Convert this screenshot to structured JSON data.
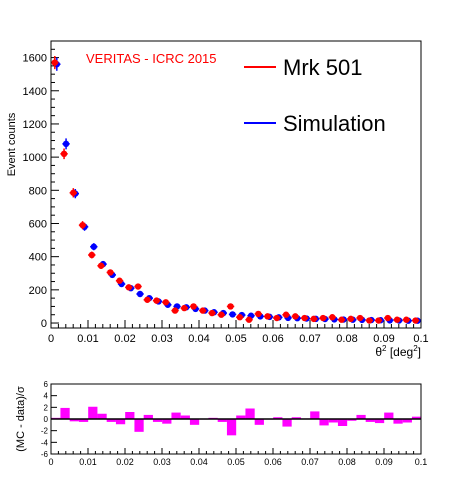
{
  "chart_data": [
    {
      "type": "scatter",
      "annotation": "VERITAS - ICRC 2015",
      "ylabel": "Event counts",
      "xlabel_base": "θ",
      "xlabel_sup": "2",
      "xlabel_unit_open": " [deg",
      "xlabel_unit_sup": "2",
      "xlabel_unit_close": "]",
      "xlim": [
        0,
        0.1
      ],
      "ylim": [
        -30,
        1700
      ],
      "x_ticks": [
        "0",
        "0.01",
        "0.02",
        "0.03",
        "0.04",
        "0.05",
        "0.06",
        "0.07",
        "0.08",
        "0.09",
        "0.1"
      ],
      "y_ticks": [
        "0",
        "200",
        "400",
        "600",
        "800",
        "1000",
        "1200",
        "1400",
        "1600"
      ],
      "legend_position": "top-right",
      "x": [
        0.0013,
        0.0038,
        0.0063,
        0.0088,
        0.0113,
        0.0138,
        0.0163,
        0.0188,
        0.0213,
        0.0238,
        0.0263,
        0.0288,
        0.0313,
        0.0338,
        0.0363,
        0.0388,
        0.0413,
        0.0438,
        0.0463,
        0.0488,
        0.0513,
        0.0538,
        0.0563,
        0.0588,
        0.0613,
        0.0638,
        0.0663,
        0.0688,
        0.0713,
        0.0738,
        0.0763,
        0.0788,
        0.0813,
        0.0838,
        0.0863,
        0.0888,
        0.0913,
        0.0938,
        0.0963,
        0.0988
      ],
      "series": [
        {
          "name": "Mrk 501",
          "color": "#ff0000",
          "values": [
            1570,
            1020,
            785,
            590,
            410,
            345,
            305,
            255,
            215,
            220,
            140,
            135,
            125,
            75,
            90,
            100,
            75,
            60,
            50,
            100,
            35,
            20,
            55,
            40,
            30,
            50,
            40,
            30,
            25,
            30,
            35,
            20,
            25,
            30,
            15,
            15,
            30,
            20,
            20,
            15
          ]
        },
        {
          "name": "Simulation",
          "color": "#0000ff",
          "values": [
            1560,
            1080,
            780,
            580,
            460,
            355,
            290,
            235,
            210,
            175,
            150,
            130,
            110,
            100,
            95,
            85,
            75,
            65,
            60,
            52,
            48,
            44,
            40,
            37,
            34,
            31,
            29,
            27,
            25,
            24,
            22,
            21,
            20,
            19,
            18,
            17,
            16,
            15,
            14,
            14
          ]
        }
      ]
    },
    {
      "type": "bar",
      "ylabel": "(MC - data)/σ",
      "xlim": [
        0,
        0.1
      ],
      "ylim": [
        -6,
        6
      ],
      "x_ticks": [
        "0",
        "0.01",
        "0.02",
        "0.03",
        "0.04",
        "0.05",
        "0.06",
        "0.07",
        "0.08",
        "0.09",
        "0.1"
      ],
      "y_ticks": [
        "-6",
        "-4",
        "-2",
        "0",
        "2",
        "4",
        "6"
      ],
      "color": "#ff00ff",
      "x": [
        0.0013,
        0.0038,
        0.0063,
        0.0088,
        0.0113,
        0.0138,
        0.0163,
        0.0188,
        0.0213,
        0.0238,
        0.0263,
        0.0288,
        0.0313,
        0.0338,
        0.0363,
        0.0388,
        0.0413,
        0.0438,
        0.0463,
        0.0488,
        0.0513,
        0.0538,
        0.0563,
        0.0588,
        0.0613,
        0.0638,
        0.0663,
        0.0688,
        0.0713,
        0.0738,
        0.0763,
        0.0788,
        0.0813,
        0.0838,
        0.0863,
        0.0888,
        0.0913,
        0.0938,
        0.0963,
        0.0988
      ],
      "values": [
        0.2,
        1.9,
        -0.4,
        -0.5,
        2.1,
        0.9,
        -0.5,
        -0.9,
        1.2,
        -2.2,
        0.7,
        -0.5,
        -0.8,
        1.1,
        0.6,
        -1.0,
        -0.1,
        0.2,
        -0.5,
        -2.8,
        0.6,
        1.8,
        -1.0,
        -0.1,
        0.3,
        -1.3,
        0.3,
        0.1,
        1.3,
        -1.1,
        -0.6,
        -1.2,
        -0.3,
        0.7,
        -0.5,
        -0.7,
        1.1,
        -0.8,
        -0.6,
        0.4
      ]
    }
  ]
}
